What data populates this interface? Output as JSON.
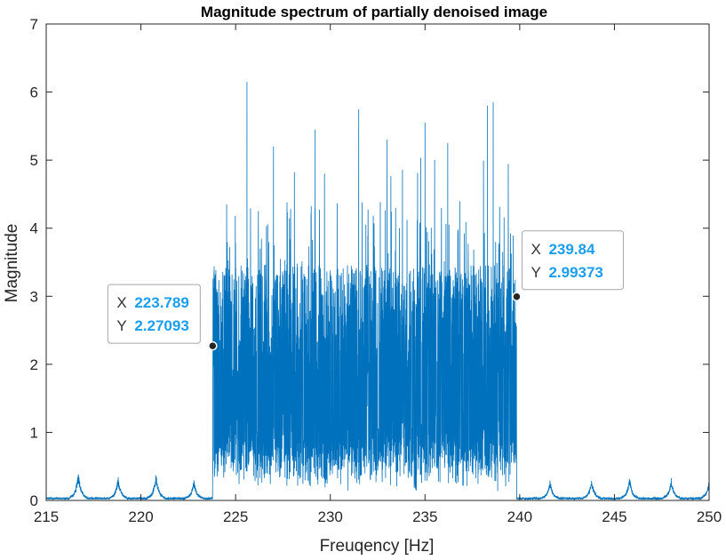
{
  "chart_data": {
    "type": "line",
    "title": "Magnitude spectrum of partially denoised image",
    "xlabel": "Freuqency [Hz]",
    "ylabel": "Magnitude",
    "xlim": [
      215,
      250
    ],
    "ylim": [
      0,
      7
    ],
    "xticks": [
      215,
      220,
      225,
      230,
      235,
      240,
      245,
      250
    ],
    "yticks": [
      0,
      1,
      2,
      3,
      4,
      5,
      6,
      7
    ],
    "grid": false,
    "series_color": "#0072BD",
    "band": {
      "x_start": 223.789,
      "x_end": 239.84,
      "typical_low": 0.5,
      "typical_high": 3.3,
      "peaks": [
        {
          "x": 225.6,
          "y": 6.15
        },
        {
          "x": 231.5,
          "y": 5.75
        },
        {
          "x": 238.3,
          "y": 5.8
        },
        {
          "x": 238.6,
          "y": 5.85
        },
        {
          "x": 229.2,
          "y": 5.45
        },
        {
          "x": 235.0,
          "y": 5.55
        },
        {
          "x": 227.0,
          "y": 5.2
        },
        {
          "x": 233.0,
          "y": 5.3
        },
        {
          "x": 236.2,
          "y": 5.25
        }
      ]
    },
    "outside_bumps": [
      {
        "x": 216.7,
        "y": 0.42
      },
      {
        "x": 218.8,
        "y": 0.33
      },
      {
        "x": 220.8,
        "y": 0.38
      },
      {
        "x": 222.8,
        "y": 0.28
      },
      {
        "x": 241.6,
        "y": 0.28
      },
      {
        "x": 243.8,
        "y": 0.3
      },
      {
        "x": 245.8,
        "y": 0.32
      },
      {
        "x": 248.0,
        "y": 0.3
      },
      {
        "x": 250.0,
        "y": 0.28
      }
    ],
    "datatips": [
      {
        "x_label": "X",
        "x_value": "223.789",
        "y_label": "Y",
        "y_value": "2.27093",
        "x": 223.789,
        "y": 2.27093,
        "side": "left"
      },
      {
        "x_label": "X",
        "x_value": "239.84",
        "y_label": "Y",
        "y_value": "2.99373",
        "x": 239.84,
        "y": 2.99373,
        "side": "right"
      }
    ]
  }
}
